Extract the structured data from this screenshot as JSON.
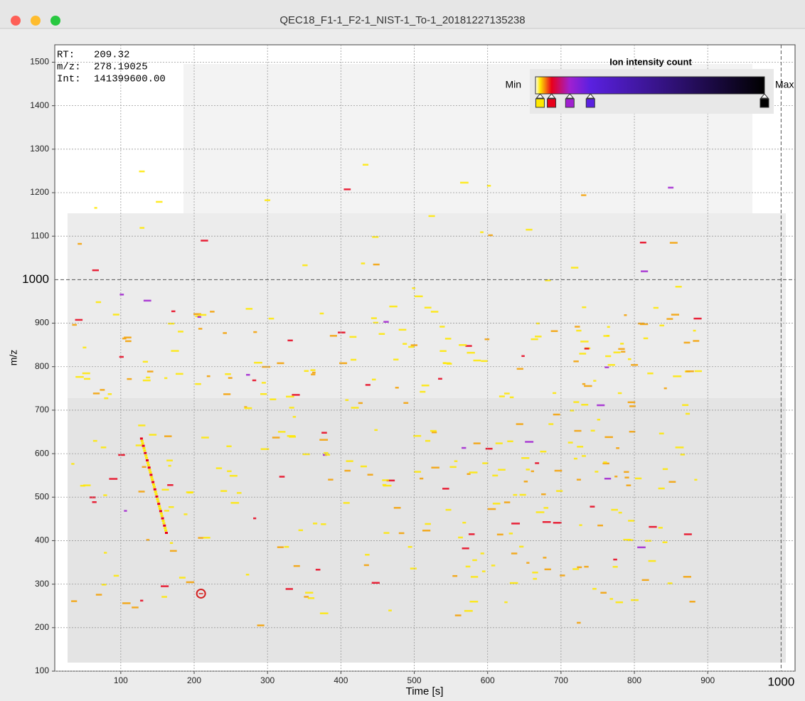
{
  "window": {
    "title": "QEC18_F1-1_F2-1_NIST-1_To-1_20181227135238"
  },
  "chart_data": {
    "type": "heatmap",
    "x_label": "Time [s]",
    "y_label": "m/z",
    "xlim": [
      10,
      1019
    ],
    "ylim": [
      100,
      1540
    ],
    "xticks": [
      100,
      200,
      300,
      400,
      500,
      600,
      700,
      800,
      900
    ],
    "yticks": [
      100,
      200,
      300,
      400,
      500,
      600,
      700,
      800,
      900,
      1100,
      1200,
      1300,
      1400,
      1500
    ],
    "grid": true,
    "crosshair": {
      "x": 1000,
      "y": 1000
    },
    "cursor": {
      "rt_label": "RT:",
      "rt": 209.32,
      "mz_label": "m/z:",
      "mz": 278.19025,
      "int_label": "Int:",
      "intensity": "141399600.00"
    },
    "colorbar": {
      "title": "Ion intensity count",
      "min_label": "Min",
      "max_label": "Max",
      "colors": [
        "#ffe800",
        "#e8001a",
        "#a020d0",
        "#5a20e0",
        "#000000"
      ]
    }
  }
}
